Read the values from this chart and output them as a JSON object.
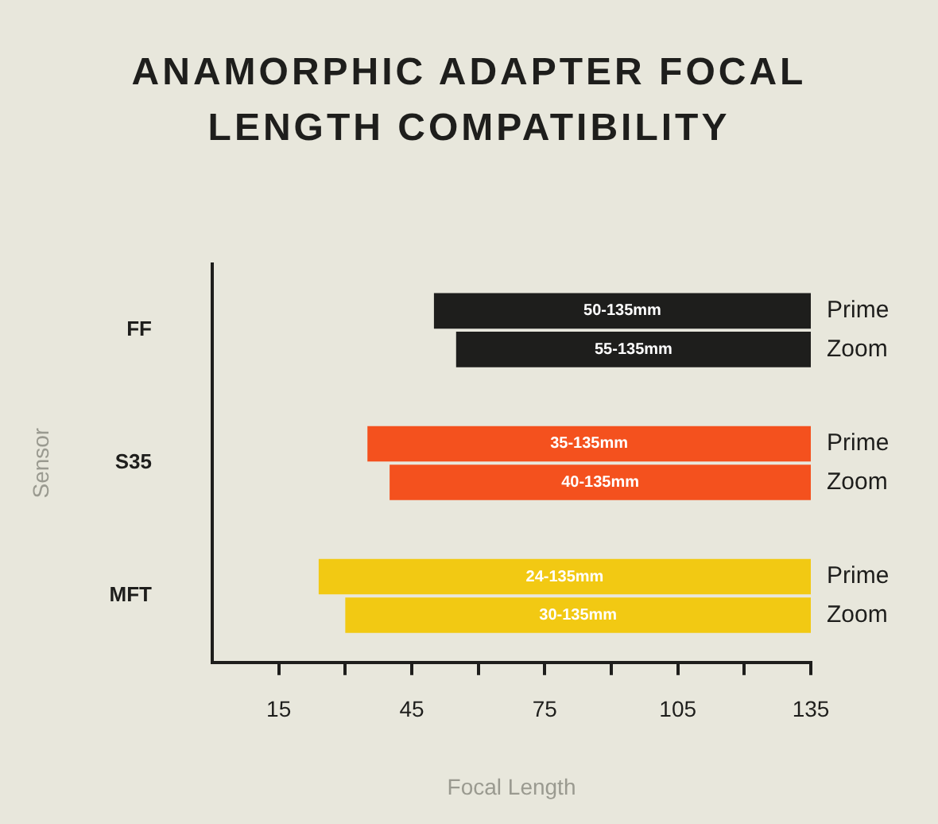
{
  "chart_data": {
    "type": "bar",
    "orientation": "horizontal",
    "title": "ANAMORPHIC ADAPTER FOCAL LENGTH COMPATIBILITY",
    "xlabel": "Focal Length",
    "ylabel": "Sensor",
    "categories": [
      "FF",
      "S35",
      "MFT"
    ],
    "series": [
      {
        "name": "Prime",
        "colors": [
          "#1e1e1c",
          "#f4511e",
          "#f2c913"
        ],
        "base": [
          50,
          35,
          24
        ],
        "values": [
          85,
          100,
          111
        ],
        "value_labels": [
          "50-135mm",
          "35-135mm",
          "24-135mm"
        ]
      },
      {
        "name": "Zoom",
        "colors": [
          "#1e1e1c",
          "#f4511e",
          "#f2c913"
        ],
        "base": [
          55,
          40,
          30
        ],
        "values": [
          80,
          95,
          105
        ],
        "value_labels": [
          "55-135mm",
          "40-135mm",
          "30-135mm"
        ]
      }
    ],
    "xlim": [
      0,
      135
    ],
    "xticks": [
      15,
      {
        "value": 30,
        "label": null
      },
      45,
      {
        "value": 60,
        "label": null
      },
      75,
      {
        "value": 90,
        "label": null
      },
      105,
      {
        "value": 120,
        "label": null
      },
      135
    ],
    "grid": false,
    "legend": false
  }
}
